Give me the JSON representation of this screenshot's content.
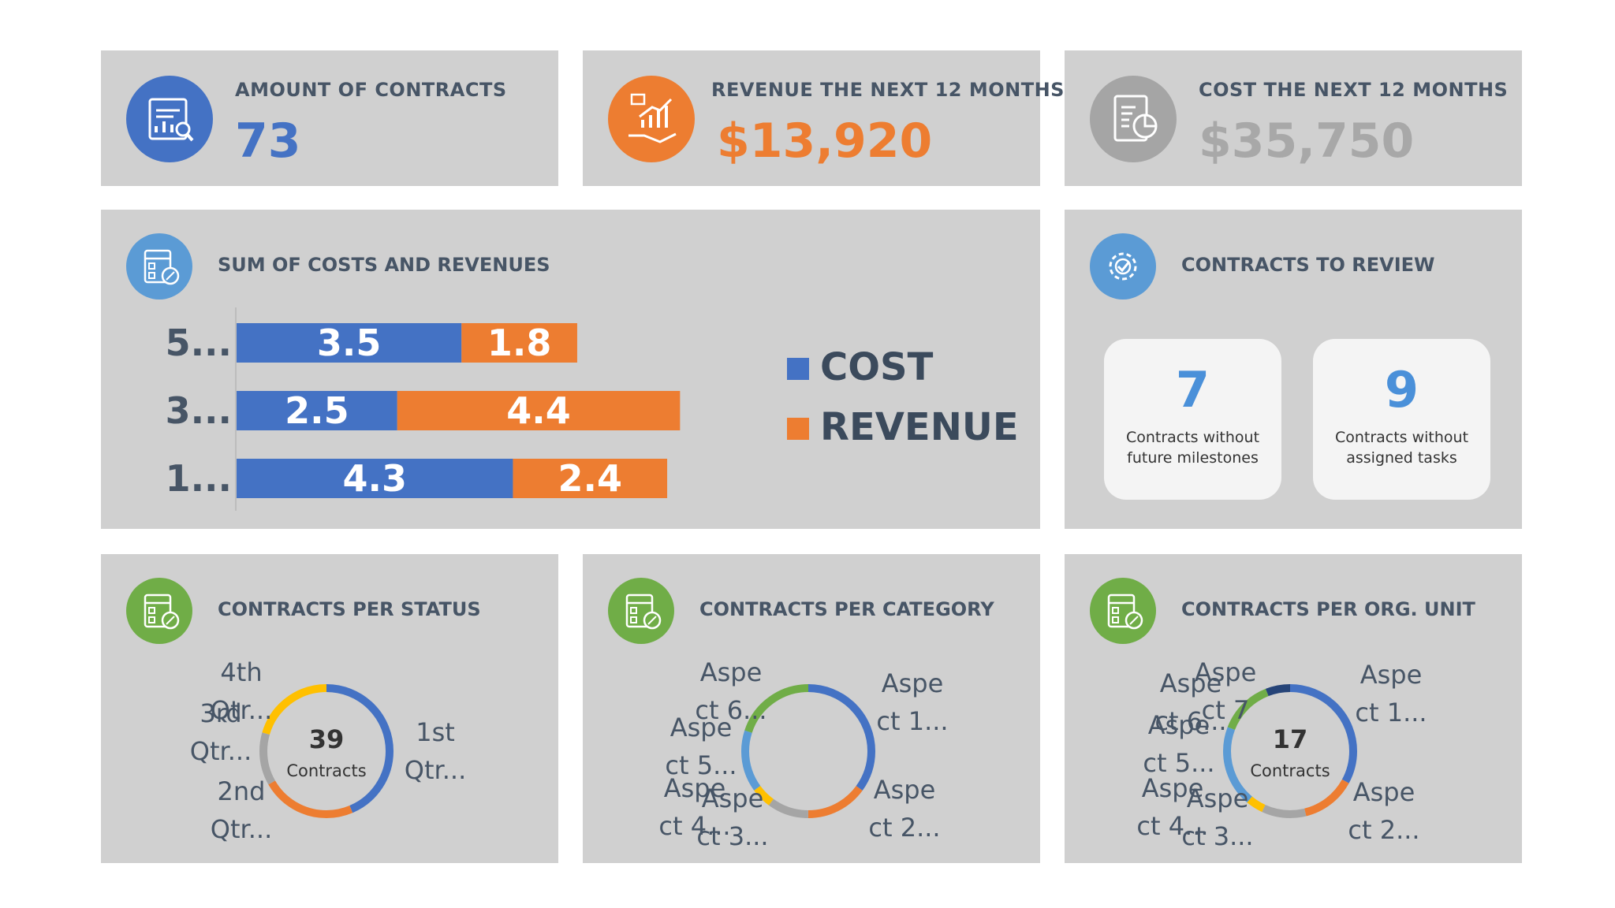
{
  "colors": {
    "blue": "#4472c4",
    "orange": "#ed7d31",
    "gray": "#a5a5a5",
    "yellow": "#ffc000",
    "green": "#70ad47",
    "lightblue": "#5b9bd5",
    "navy": "#264478",
    "card": "#d0d0d0"
  },
  "kpis": [
    {
      "title": "AMOUNT OF CONTRACTS",
      "value": "73",
      "icon": "chart-document-icon"
    },
    {
      "title": "REVENUE THE NEXT 12 MONTHS",
      "value": "$13,920",
      "icon": "hand-growth-icon"
    },
    {
      "title": "COST THE NEXT 12 MONTHS",
      "value": "$35,750",
      "icon": "clipboard-chart-icon"
    }
  ],
  "sum_section": {
    "title": "SUM OF COSTS AND REVENUES",
    "icon": "calculator-icon"
  },
  "review": {
    "title": "CONTRACTS TO REVIEW",
    "icon": "gear-check-icon",
    "boxes": [
      {
        "number": "7",
        "label_line1": "Contracts without",
        "label_line2": "future milestones"
      },
      {
        "number": "9",
        "label_line1": "Contracts without",
        "label_line2": "assigned tasks"
      }
    ]
  },
  "donut_sections": [
    {
      "title": "CONTRACTS PER STATUS",
      "icon": "calculator-icon",
      "center_value": "39",
      "center_label": "Contracts"
    },
    {
      "title": "CONTRACTS PER CATEGORY",
      "icon": "calculator-icon",
      "center_value": "",
      "center_label": ""
    },
    {
      "title": "CONTRACTS PER ORG. UNIT",
      "icon": "calculator-icon",
      "center_value": "17",
      "center_label": "Contracts"
    }
  ],
  "chart_data": [
    {
      "type": "bar",
      "orientation": "horizontal-stacked",
      "title": "SUM OF COSTS AND REVENUES",
      "categories": [
        "5...",
        "3...",
        "1..."
      ],
      "series": [
        {
          "name": "COST",
          "color": "#4472c4",
          "values": [
            3.5,
            2.5,
            4.3
          ]
        },
        {
          "name": "REVENUE",
          "color": "#ed7d31",
          "values": [
            1.8,
            4.4,
            2.4
          ]
        }
      ],
      "xlim": [
        0,
        7.5
      ],
      "legend": "right"
    },
    {
      "type": "pie",
      "variant": "donut",
      "title": "CONTRACTS PER STATUS",
      "categories": [
        "1st Qtr...",
        "2nd Qtr...",
        "3rd Qtr...",
        "4th Qtr..."
      ],
      "values": [
        17,
        9,
        5,
        8
      ],
      "colors": [
        "#4472c4",
        "#ed7d31",
        "#a5a5a5",
        "#ffc000"
      ],
      "labels": [
        {
          "lines": [
            "1st",
            "Qtr..."
          ]
        },
        {
          "lines": [
            "2nd",
            "Qtr..."
          ]
        },
        {
          "lines": [
            "3rd",
            "Qtr..."
          ]
        },
        {
          "lines": [
            "4th",
            "Qtr..."
          ]
        }
      ]
    },
    {
      "type": "pie",
      "variant": "donut",
      "title": "CONTRACTS PER CATEGORY",
      "categories": [
        "Aspect 1...",
        "Aspect 2...",
        "Aspect 3...",
        "Aspect 4...",
        "Aspect 5...",
        "Aspect 6..."
      ],
      "values": [
        14,
        6,
        4,
        2,
        6,
        8
      ],
      "colors": [
        "#4472c4",
        "#ed7d31",
        "#a5a5a5",
        "#ffc000",
        "#5b9bd5",
        "#70ad47"
      ],
      "labels": [
        {
          "lines": [
            "Aspe",
            "ct 1..."
          ]
        },
        {
          "lines": [
            "Aspe",
            "ct 2..."
          ]
        },
        {
          "lines": [
            "Aspe",
            "ct 3..."
          ]
        },
        {
          "lines": [
            "Aspe",
            "ct 4..."
          ]
        },
        {
          "lines": [
            "Aspe",
            "ct 5..."
          ]
        },
        {
          "lines": [
            "Aspe",
            "ct 6..."
          ]
        }
      ]
    },
    {
      "type": "pie",
      "variant": "donut",
      "title": "CONTRACTS PER ORG. UNIT",
      "categories": [
        "Aspect 1...",
        "Aspect 2...",
        "Aspect 3...",
        "Aspect 4...",
        "Aspect 5...",
        "Aspect 6...",
        "Aspect 7"
      ],
      "values": [
        5.5,
        2.2,
        1.8,
        0.7,
        3.3,
        2.2,
        1.0
      ],
      "colors": [
        "#4472c4",
        "#ed7d31",
        "#a5a5a5",
        "#ffc000",
        "#5b9bd5",
        "#70ad47",
        "#264478"
      ],
      "labels": [
        {
          "lines": [
            "Aspe",
            "ct 1..."
          ]
        },
        {
          "lines": [
            "Aspe",
            "ct 2..."
          ]
        },
        {
          "lines": [
            "Aspe",
            "ct 3..."
          ]
        },
        {
          "lines": [
            "Aspe",
            "ct 4..."
          ]
        },
        {
          "lines": [
            "Aspe",
            "ct 5..."
          ]
        },
        {
          "lines": [
            "Aspe",
            "ct 6..."
          ]
        },
        {
          "lines": [
            "Aspe",
            "ct 7"
          ]
        }
      ]
    }
  ]
}
